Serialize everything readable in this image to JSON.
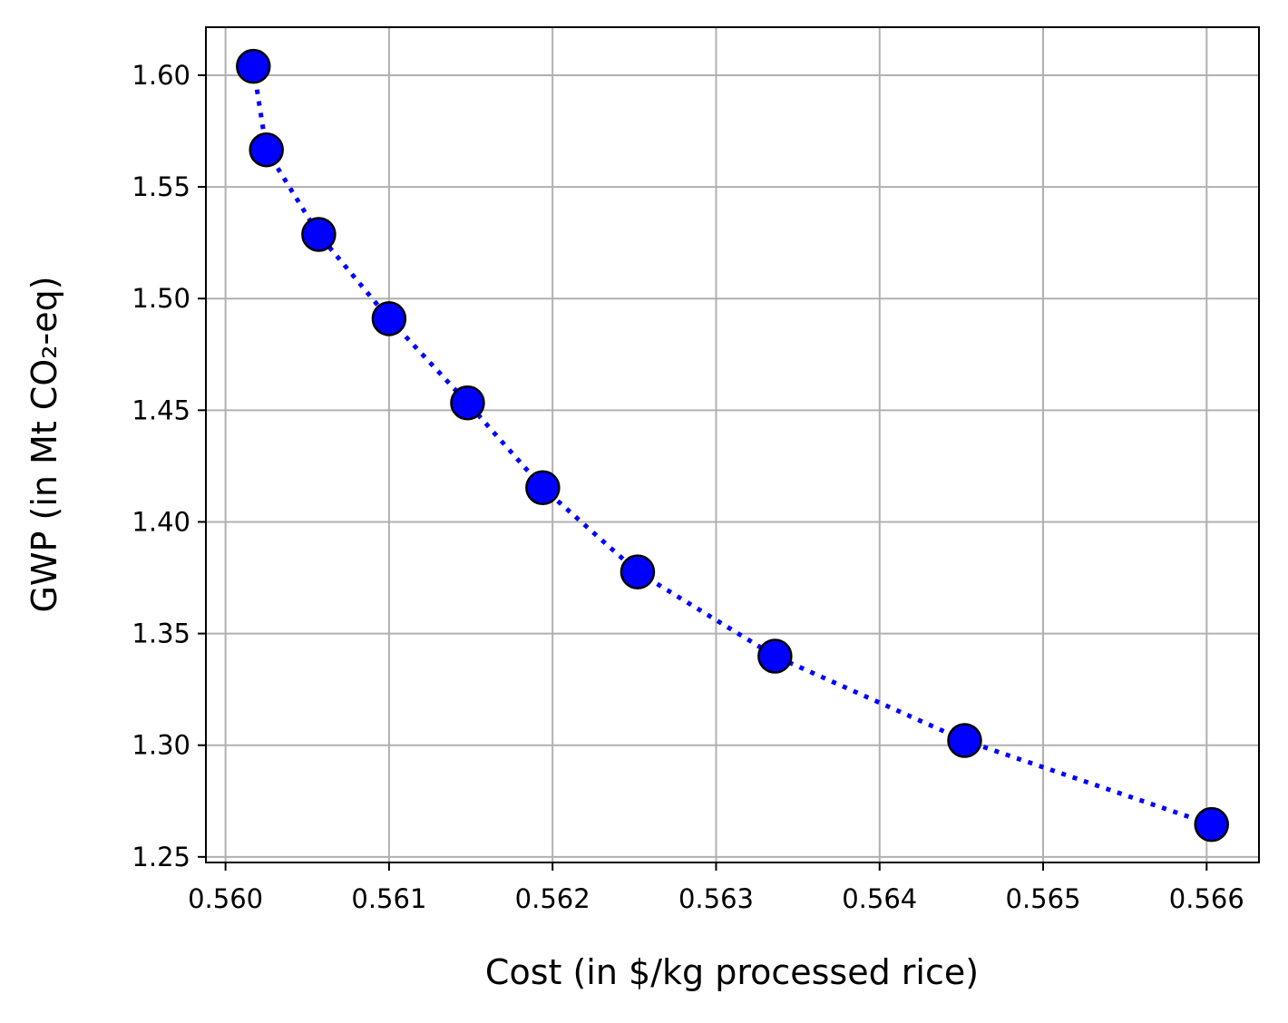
{
  "chart_data": {
    "type": "scatter",
    "title": "",
    "xlabel": "Cost (in $/kg processed rice)",
    "ylabel": "GWP (in Mt CO₂-eq)",
    "xlim": [
      0.55988,
      0.56632
    ],
    "ylim": [
      1.2475,
      1.6215
    ],
    "xticks": [
      0.56,
      0.561,
      0.562,
      0.563,
      0.564,
      0.565,
      0.566
    ],
    "xtick_labels": [
      "0.560",
      "0.561",
      "0.562",
      "0.563",
      "0.564",
      "0.565",
      "0.566"
    ],
    "yticks": [
      1.25,
      1.3,
      1.35,
      1.4,
      1.45,
      1.5,
      1.55,
      1.6
    ],
    "ytick_labels": [
      "1.25",
      "1.30",
      "1.35",
      "1.40",
      "1.45",
      "1.50",
      "1.55",
      "1.60"
    ],
    "grid": true,
    "series": [
      {
        "marker_color": "#0000ff",
        "marker_edge_color": "#000000",
        "line_color": "#0000ff",
        "line_style": "dotted",
        "points": [
          {
            "x": 0.56017,
            "y": 1.604
          },
          {
            "x": 0.56025,
            "y": 1.5666
          },
          {
            "x": 0.56057,
            "y": 1.5287
          },
          {
            "x": 0.561,
            "y": 1.491
          },
          {
            "x": 0.56148,
            "y": 1.4533
          },
          {
            "x": 0.56194,
            "y": 1.4153
          },
          {
            "x": 0.56252,
            "y": 1.3776
          },
          {
            "x": 0.56336,
            "y": 1.3399
          },
          {
            "x": 0.56452,
            "y": 1.3021
          },
          {
            "x": 0.56603,
            "y": 1.2645
          }
        ]
      }
    ]
  }
}
